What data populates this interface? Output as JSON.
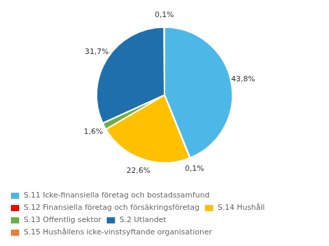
{
  "chart_data": {
    "type": "pie",
    "categories": [
      "S.11 Icke-finansiella företag och bostadssamfund",
      "S.12 Finansiella företag och försäkringsföretag",
      "S.14 Hushåll",
      "S.13 Offentlig sektor",
      "S.2 Utlandet",
      "S.15 Hushållens icke-vinstsyftande organisationer"
    ],
    "values": [
      43.8,
      0.1,
      22.6,
      1.6,
      31.7,
      0.1
    ],
    "value_labels": [
      "43,8%",
      "0,1%",
      "22,6%",
      "1,6%",
      "31,7%",
      "0,1%"
    ],
    "colors": [
      "#4db8e8",
      "#ff0000",
      "#ffc000",
      "#70ad47",
      "#1f6fad",
      "#ed7d31"
    ],
    "data_labels": true,
    "legend": "bottom"
  }
}
